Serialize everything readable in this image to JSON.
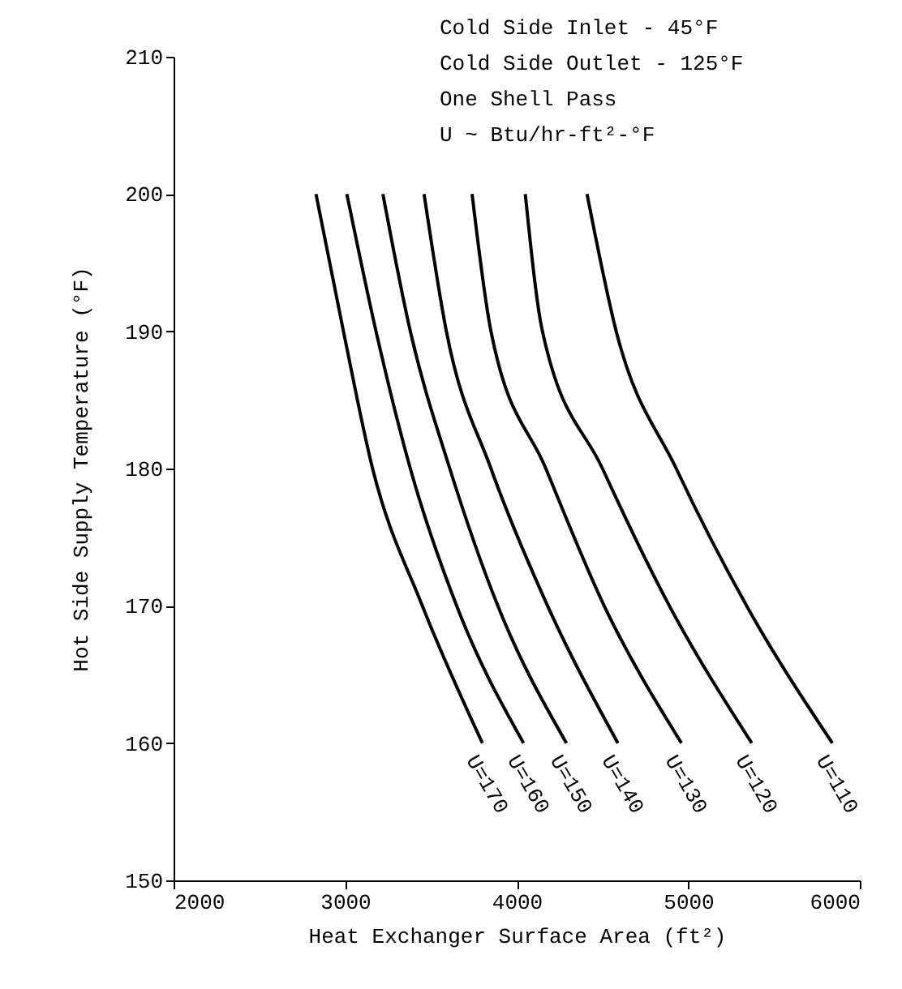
{
  "chart_data": {
    "type": "line",
    "xlabel": "Heat Exchanger Surface Area (ft²)",
    "ylabel": "Hot Side Supply Temperature (°F)",
    "annotations": [
      "Cold Side Inlet  -  45°F",
      "Cold Side Outlet - 125°F",
      "One Shell Pass",
      " U ~ Btu/hr-ft²-°F"
    ],
    "xlim": [
      2000,
      6000
    ],
    "xticks": [
      2000,
      3000,
      4000,
      5000,
      6000
    ],
    "ylim": [
      150,
      210
    ],
    "yticks": [
      150,
      160,
      170,
      180,
      190,
      200,
      210
    ],
    "series": [
      {
        "name": "U=170",
        "color": "#000000",
        "x": [
          2830,
          2990,
          3160,
          3450,
          3800
        ],
        "values": [
          200,
          190,
          180,
          170,
          160
        ]
      },
      {
        "name": "U=160",
        "color": "#000000",
        "x": [
          3010,
          3180,
          3380,
          3650,
          4040
        ],
        "values": [
          200,
          190,
          180,
          170,
          160
        ]
      },
      {
        "name": "U=150",
        "color": "#000000",
        "x": [
          3220,
          3380,
          3610,
          3890,
          4290
        ],
        "values": [
          200,
          190,
          180,
          170,
          160
        ]
      },
      {
        "name": "U=140",
        "color": "#000000",
        "x": [
          3460,
          3590,
          3850,
          4180,
          4590
        ],
        "values": [
          200,
          190,
          180,
          170,
          160
        ]
      },
      {
        "name": "U=130",
        "color": "#000000",
        "x": [
          3740,
          3850,
          4170,
          4510,
          4960
        ],
        "values": [
          200,
          190,
          180,
          170,
          160
        ]
      },
      {
        "name": "U=120",
        "color": "#000000",
        "x": [
          4050,
          4150,
          4500,
          4890,
          5370
        ],
        "values": [
          200,
          190,
          180,
          170,
          160
        ]
      },
      {
        "name": "U=110",
        "color": "#000000",
        "x": [
          4410,
          4580,
          4930,
          5340,
          5840
        ],
        "values": [
          200,
          190,
          180,
          170,
          160
        ]
      }
    ]
  }
}
